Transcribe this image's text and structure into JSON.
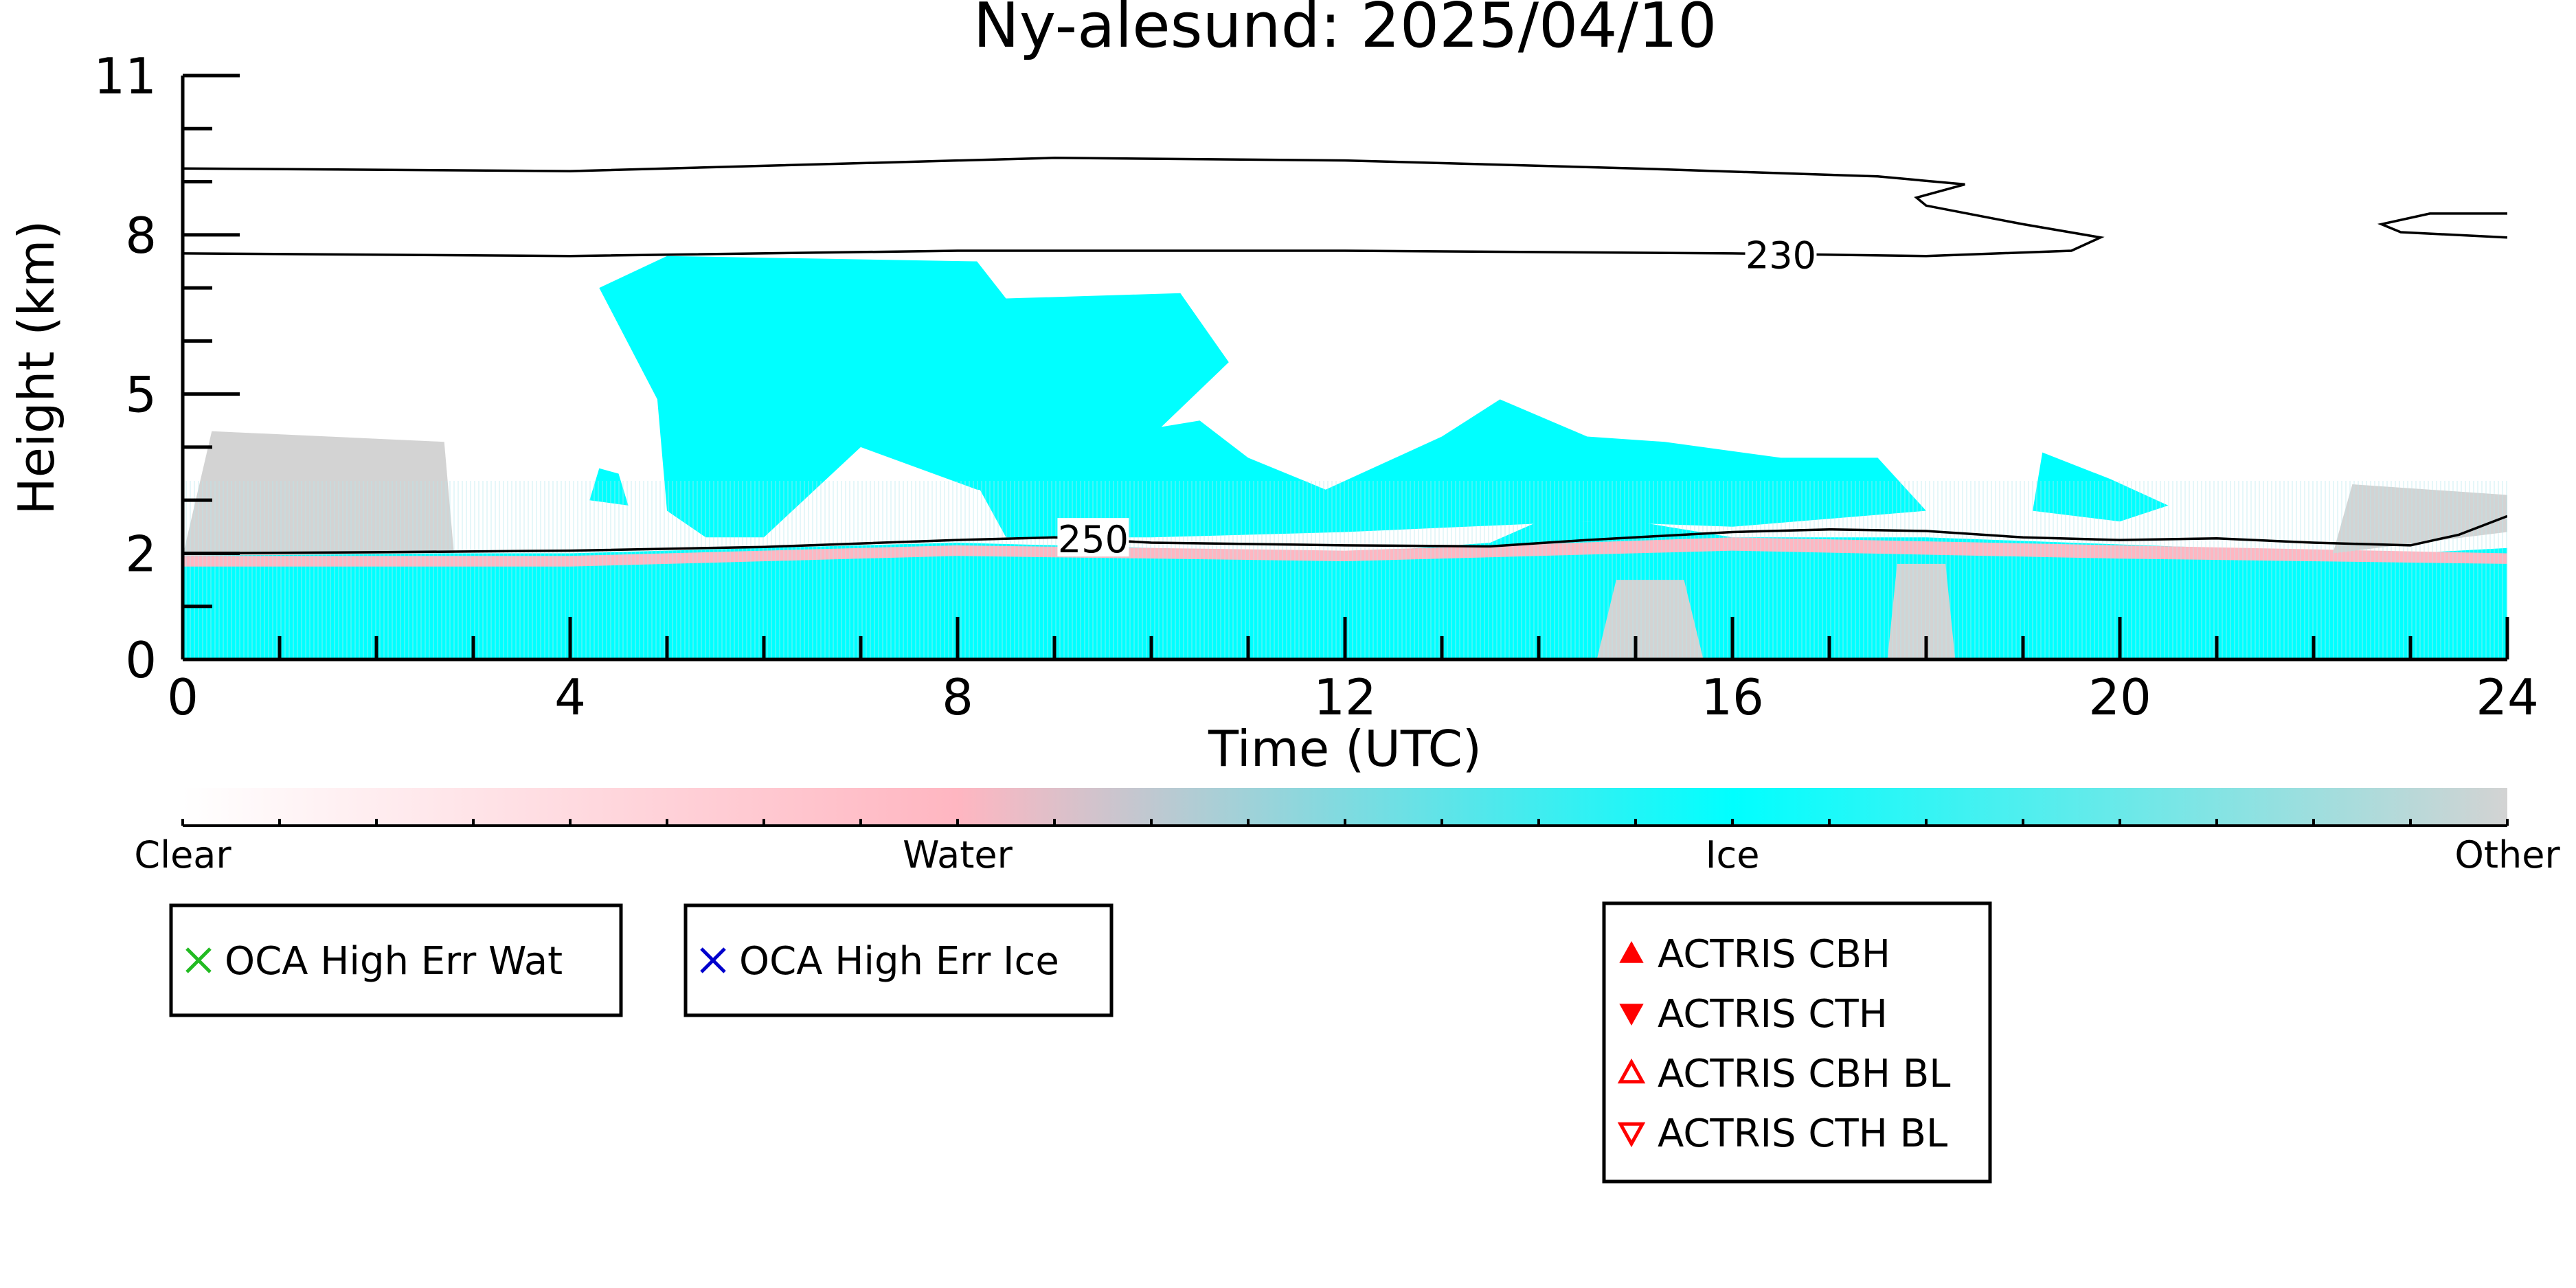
{
  "chart_data": {
    "type": "heatmap",
    "title": "Ny-alesund: 2025/04/10",
    "xlabel": "Time (UTC)",
    "ylabel": "Height (km)",
    "xlim": [
      0,
      24
    ],
    "ylim": [
      0,
      11
    ],
    "x_ticks": [
      {
        "value": 0,
        "label": "0"
      },
      {
        "value": 4,
        "label": "4"
      },
      {
        "value": 8,
        "label": "8"
      },
      {
        "value": 12,
        "label": "12"
      },
      {
        "value": 16,
        "label": "16"
      },
      {
        "value": 20,
        "label": "20"
      },
      {
        "value": 24,
        "label": "24"
      }
    ],
    "y_ticks": [
      {
        "value": 0,
        "label": "0"
      },
      {
        "value": 2,
        "label": "2"
      },
      {
        "value": 5,
        "label": "5"
      },
      {
        "value": 8,
        "label": "8"
      },
      {
        "value": 11,
        "label": "11"
      }
    ],
    "classes": [
      {
        "name": "Clear",
        "color": "#ffffff"
      },
      {
        "name": "Water",
        "color": "#ffb6c1"
      },
      {
        "name": "Ice",
        "color": "#00ffff"
      },
      {
        "name": "Other",
        "color": "#d3d3d3"
      }
    ],
    "colorbar_ticks": [
      {
        "value": 0,
        "label": "Clear"
      },
      {
        "value": 1,
        "label": "Water"
      },
      {
        "value": 2,
        "label": "Ice"
      },
      {
        "value": 3,
        "label": "Other"
      }
    ],
    "cloud_regions": [
      {
        "class": "Ice",
        "polygon": [
          [
            0,
            0
          ],
          [
            24,
            0
          ],
          [
            24,
            2.1
          ],
          [
            23,
            2.0
          ],
          [
            21,
            2.1
          ],
          [
            19.5,
            2.2
          ],
          [
            18,
            2.3
          ],
          [
            16,
            2.3
          ],
          [
            15,
            2.6
          ],
          [
            14,
            2.6
          ],
          [
            13.5,
            2.2
          ],
          [
            12,
            2.0
          ],
          [
            10,
            2.1
          ],
          [
            8,
            2.2
          ],
          [
            6,
            2.1
          ],
          [
            4,
            2.0
          ],
          [
            2,
            2.0
          ],
          [
            0,
            2.0
          ]
        ]
      },
      {
        "class": "Water",
        "polygon": [
          [
            0,
            1.75
          ],
          [
            4,
            1.75
          ],
          [
            8,
            1.95
          ],
          [
            12,
            1.85
          ],
          [
            16,
            2.05
          ],
          [
            20,
            1.9
          ],
          [
            24,
            1.8
          ],
          [
            24,
            2.0
          ],
          [
            20,
            2.15
          ],
          [
            16,
            2.3
          ],
          [
            12,
            2.05
          ],
          [
            8,
            2.15
          ],
          [
            4,
            1.95
          ],
          [
            0,
            1.95
          ]
        ]
      },
      {
        "class": "Other",
        "polygon": [
          [
            0,
            1.95
          ],
          [
            0.3,
            4.3
          ],
          [
            2.7,
            4.1
          ],
          [
            2.8,
            2.0
          ]
        ]
      },
      {
        "class": "Other",
        "polygon": [
          [
            14.6,
            0
          ],
          [
            15.7,
            0
          ],
          [
            15.5,
            1.5
          ],
          [
            14.8,
            1.5
          ]
        ]
      },
      {
        "class": "Other",
        "polygon": [
          [
            17.6,
            0
          ],
          [
            18.3,
            0
          ],
          [
            18.2,
            1.8
          ],
          [
            17.7,
            1.8
          ]
        ]
      },
      {
        "class": "Other",
        "polygon": [
          [
            22.2,
            2.0
          ],
          [
            24,
            2.4
          ],
          [
            24,
            3.1
          ],
          [
            22.4,
            3.3
          ]
        ]
      },
      {
        "class": "Ice",
        "polygon": [
          [
            4.3,
            7.0
          ],
          [
            5.0,
            7.6
          ],
          [
            8.2,
            7.5
          ],
          [
            8.5,
            6.8
          ],
          [
            10.3,
            6.9
          ],
          [
            10.8,
            5.6
          ],
          [
            10.0,
            4.2
          ],
          [
            9.0,
            3.0
          ],
          [
            8.2,
            3.2
          ],
          [
            7.0,
            4.0
          ],
          [
            6.0,
            2.3
          ],
          [
            5.4,
            2.3
          ],
          [
            5.0,
            2.8
          ],
          [
            4.9,
            4.9
          ]
        ]
      },
      {
        "class": "Ice",
        "polygon": [
          [
            8.2,
            3.3
          ],
          [
            9.5,
            4.2
          ],
          [
            10.5,
            4.5
          ],
          [
            11.0,
            3.8
          ],
          [
            11.8,
            3.2
          ],
          [
            13.0,
            4.2
          ],
          [
            13.6,
            4.9
          ],
          [
            14.5,
            4.2
          ],
          [
            15.3,
            4.1
          ],
          [
            16.5,
            3.8
          ],
          [
            17.5,
            3.8
          ],
          [
            18.0,
            2.8
          ],
          [
            16.0,
            2.5
          ],
          [
            14.5,
            2.6
          ],
          [
            12.0,
            2.4
          ],
          [
            10.0,
            2.3
          ],
          [
            8.5,
            2.3
          ]
        ]
      },
      {
        "class": "Ice",
        "polygon": [
          [
            19.1,
            2.8
          ],
          [
            19.2,
            3.9
          ],
          [
            19.9,
            3.4
          ],
          [
            20.5,
            2.9
          ],
          [
            20.0,
            2.6
          ]
        ]
      },
      {
        "class": "Ice",
        "polygon": [
          [
            4.2,
            3.0
          ],
          [
            4.3,
            3.6
          ],
          [
            4.5,
            3.5
          ],
          [
            4.6,
            2.9
          ]
        ]
      }
    ],
    "contours": [
      {
        "label": "230",
        "label_at": [
          16.5,
          7.6
        ],
        "points": [
          [
            0,
            9.25
          ],
          [
            4,
            9.2
          ],
          [
            6,
            9.3
          ],
          [
            9,
            9.45
          ],
          [
            12,
            9.4
          ],
          [
            15,
            9.25
          ],
          [
            17.5,
            9.1
          ],
          [
            18.4,
            8.95
          ],
          [
            17.9,
            8.7
          ],
          [
            18.0,
            8.55
          ],
          [
            19.0,
            8.2
          ],
          [
            19.8,
            7.95
          ],
          [
            19.5,
            7.7
          ],
          [
            18,
            7.6
          ],
          [
            16,
            7.65
          ],
          [
            12,
            7.7
          ],
          [
            8,
            7.7
          ],
          [
            4,
            7.6
          ],
          [
            0,
            7.65
          ]
        ]
      },
      {
        "label": "",
        "points": [
          [
            24,
            8.4
          ],
          [
            23.2,
            8.4
          ],
          [
            22.7,
            8.2
          ],
          [
            22.9,
            8.05
          ],
          [
            24,
            7.95
          ]
        ]
      },
      {
        "label": "250",
        "label_at": [
          9.4,
          2.25
        ],
        "points": [
          [
            0,
            2.0
          ],
          [
            2,
            2.02
          ],
          [
            4,
            2.05
          ],
          [
            6,
            2.12
          ],
          [
            8,
            2.25
          ],
          [
            9,
            2.3
          ],
          [
            10,
            2.2
          ],
          [
            12,
            2.15
          ],
          [
            13.5,
            2.13
          ],
          [
            14.5,
            2.25
          ],
          [
            16,
            2.4
          ],
          [
            17,
            2.45
          ],
          [
            18,
            2.42
          ],
          [
            19,
            2.3
          ],
          [
            20,
            2.25
          ],
          [
            21,
            2.28
          ],
          [
            22,
            2.2
          ],
          [
            23,
            2.15
          ],
          [
            23.5,
            2.35
          ],
          [
            24,
            2.7
          ]
        ]
      }
    ],
    "legend_oca": [
      {
        "label": "OCA High Err Wat",
        "marker": "x",
        "color": "#22bb22"
      },
      {
        "label": "OCA High Err Ice",
        "marker": "x",
        "color": "#0000cc"
      }
    ],
    "legend_actris": [
      {
        "label": "ACTRIS CBH",
        "marker": "triangle-up-filled",
        "color": "#ff0000"
      },
      {
        "label": "ACTRIS CTH",
        "marker": "triangle-down-filled",
        "color": "#ff0000"
      },
      {
        "label": "ACTRIS CBH BL",
        "marker": "triangle-up-open",
        "color": "#ff0000"
      },
      {
        "label": "ACTRIS CTH BL",
        "marker": "triangle-down-open",
        "color": "#ff0000"
      }
    ]
  }
}
